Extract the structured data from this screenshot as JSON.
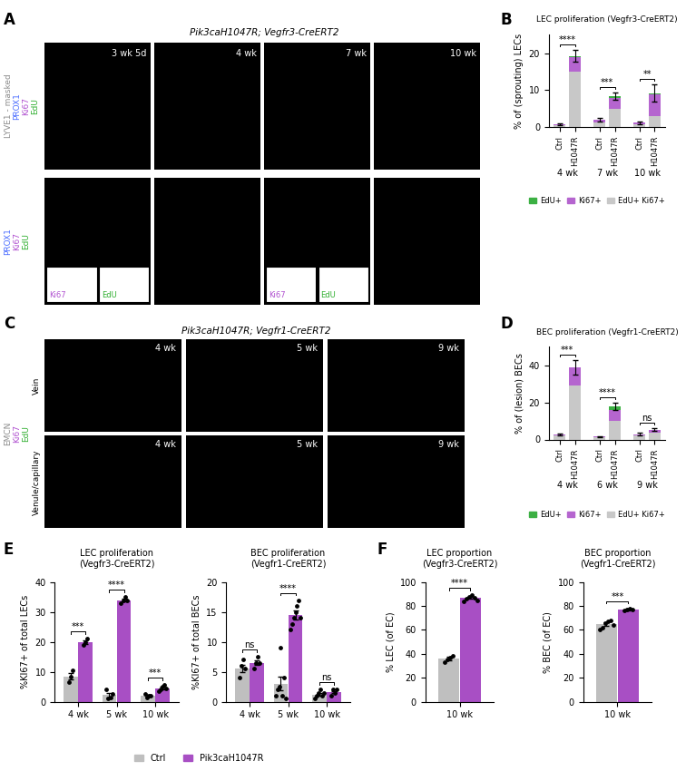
{
  "images": [
    {
      "letter": "A",
      "title": "Pik3caH1047R; Vegfr3-CreERT2",
      "columns": 4,
      "rows": [
        {
          "labels": [
            "3 wk 5d",
            "4 wk",
            "7 wk",
            "10 wk"
          ],
          "channels": [
            {
              "text": "LYVE1 - masked",
              "color": "#8c8c8c"
            },
            {
              "text": "PROX1",
              "color": "#4a6cff"
            },
            {
              "text": "Ki67",
              "color": "#b050d0"
            },
            {
              "text": "EdU",
              "color": "#2fae2f"
            }
          ]
        },
        {
          "channels": [
            {
              "text": "PROX1",
              "color": "#4a6cff"
            },
            {
              "text": "Ki67",
              "color": "#b050d0"
            },
            {
              "text": "EdU",
              "color": "#2fae2f"
            }
          ],
          "insets": {
            "tiles": [
              0,
              2
            ],
            "labels": [
              "Ki67",
              "EdU"
            ]
          }
        }
      ]
    },
    {
      "letter": "C",
      "title": "Pik3caH1047R; Vegfr1-CreERT2",
      "columns": 3,
      "channels": [
        {
          "text": "EMCN",
          "color": "#8c8c8c"
        },
        {
          "text": "Ki67",
          "color": "#b050d0"
        },
        {
          "text": "EdU",
          "color": "#2fae2f"
        }
      ],
      "rows": [
        {
          "name": "Vein",
          "labels": [
            "4 wk",
            "5 wk",
            "9 wk"
          ]
        },
        {
          "name": "Venule/capillary",
          "labels": [
            "4 wk",
            "5 wk",
            "9 wk"
          ]
        }
      ]
    }
  ],
  "chart_data": [
    {
      "letter": "B",
      "type": "bar",
      "stacked": true,
      "title": "LEC proliferation (Vegfr3-CreERT2)",
      "y_label": "% of (sprouting) LECs",
      "categories": [
        "Ctrl",
        "H1047R",
        "Ctrl",
        "H1047R",
        "Ctrl",
        "H1047R"
      ],
      "groups": [
        "4 wk",
        "7 wk",
        "10 wk"
      ],
      "ylim": [
        0,
        25
      ],
      "yticks": [
        0,
        10,
        20
      ],
      "series": [
        {
          "name": "EdU+ Ki67+",
          "color": "#c8c8c8",
          "values": [
            0.5,
            15,
            1.2,
            5,
            0.8,
            3
          ]
        },
        {
          "name": "Ki67+",
          "color": "#b565cf",
          "values": [
            0.3,
            4,
            0.8,
            3,
            0.4,
            6
          ]
        },
        {
          "name": "EdU+",
          "color": "#3cb043",
          "values": [
            0,
            0.3,
            0,
            0.3,
            0,
            0.2
          ]
        }
      ],
      "errors": [
        0.3,
        1.5,
        0.5,
        1,
        0.4,
        2.3
      ],
      "significance": [
        {
          "pair": [
            0,
            1
          ],
          "label": "****"
        },
        {
          "pair": [
            2,
            3
          ],
          "label": "***"
        },
        {
          "pair": [
            4,
            5
          ],
          "label": "**"
        }
      ],
      "legend": "lower center"
    },
    {
      "letter": "D",
      "type": "bar",
      "stacked": true,
      "title": "BEC proliferation (Vegfr1-CreERT2)",
      "y_label": "% of (lesion) BECs",
      "categories": [
        "Ctrl",
        "H1047R",
        "Ctrl",
        "H1047R",
        "Ctrl",
        "H1047R"
      ],
      "groups": [
        "4 wk",
        "6 wk",
        "9 wk"
      ],
      "ylim": [
        0,
        50
      ],
      "yticks": [
        0,
        20,
        40
      ],
      "series": [
        {
          "name": "EdU+ Ki67+",
          "color": "#c8c8c8",
          "values": [
            2,
            29,
            1,
            10,
            2,
            3.5
          ]
        },
        {
          "name": "Ki67+",
          "color": "#b565cf",
          "values": [
            0.8,
            10,
            0.5,
            6,
            0.8,
            1.5
          ]
        },
        {
          "name": "EdU+",
          "color": "#3cb043",
          "values": [
            0,
            0,
            0,
            2,
            0,
            0.3
          ]
        }
      ],
      "errors": [
        0.5,
        4,
        0.3,
        2,
        0.8,
        0.8
      ],
      "significance": [
        {
          "pair": [
            0,
            1
          ],
          "label": "***"
        },
        {
          "pair": [
            2,
            3
          ],
          "label": "****"
        },
        {
          "pair": [
            4,
            5
          ],
          "label": "ns"
        }
      ],
      "legend": "lower center"
    },
    {
      "letter": "E",
      "type": "bar",
      "title": "LEC proliferation\n(Vegfr3-CreERT2)",
      "y_label": "%KI67+ of total LECs",
      "categories": [
        "4 wk",
        "5 wk",
        "10 wk"
      ],
      "ylim": [
        0,
        40
      ],
      "yticks": [
        0,
        10,
        20,
        30,
        40
      ],
      "series": [
        {
          "name": "Ctrl",
          "color": "#bfbfbf",
          "values": [
            8.5,
            2.2,
            2
          ],
          "errors": [
            1.2,
            0.8,
            0.3
          ],
          "points": [
            [
              6.5,
              8.5,
              10.5
            ],
            [
              4,
              1,
              1.5,
              2.5
            ],
            [
              2.5,
              1.5,
              2,
              2
            ]
          ]
        },
        {
          "name": "Pik3caH1047R",
          "color": "#a84fc4",
          "values": [
            20,
            34,
            4.5
          ],
          "errors": [
            0.6,
            0.5,
            0.4
          ],
          "points": [
            [
              19,
              20,
              21
            ],
            [
              33,
              34,
              35,
              34
            ],
            [
              3.5,
              4,
              5,
              5.5,
              4.5
            ]
          ]
        }
      ],
      "significance": [
        "***",
        "****",
        "***"
      ],
      "legend": "lower center"
    },
    {
      "type": "bar",
      "title": "BEC proliferation\n(Vegfr1-CreERT2)",
      "y_label": "%KI67+ of total BECs",
      "categories": [
        "4 wk",
        "5 wk",
        "10 wk"
      ],
      "ylim": [
        0,
        20
      ],
      "yticks": [
        0,
        5,
        10,
        15,
        20
      ],
      "series": [
        {
          "name": "Ctrl",
          "color": "#bfbfbf",
          "values": [
            5.5,
            3,
            1.2
          ],
          "errors": [
            0.6,
            1.1,
            0.2
          ],
          "points": [
            [
              4,
              6,
              7,
              5.5
            ],
            [
              1,
              2,
              2.5,
              9,
              1,
              4,
              0.5
            ],
            [
              0.5,
              1,
              1.5,
              2,
              1,
              1.5
            ]
          ]
        },
        {
          "name": "Pik3caH1047R",
          "color": "#a84fc4",
          "values": [
            6.5,
            14.5,
            1.6
          ],
          "errors": [
            0.4,
            0.7,
            0.2
          ],
          "points": [
            [
              5.5,
              6.5,
              7.5,
              6.5
            ],
            [
              12,
              13,
              14,
              15,
              16,
              17,
              14
            ],
            [
              1,
              2,
              1.5,
              2
            ]
          ]
        }
      ],
      "significance": [
        "ns",
        "****",
        "ns"
      ]
    },
    {
      "letter": "F",
      "type": "bar",
      "title": "LEC proportion\n(Vegfr3-CreERT2)",
      "y_label": "% LEC (of EC)",
      "categories": [
        "10 wk"
      ],
      "ylim": [
        0,
        100
      ],
      "yticks": [
        0,
        20,
        40,
        60,
        80,
        100
      ],
      "series": [
        {
          "name": "Ctrl",
          "color": "#bfbfbf",
          "values": [
            36
          ],
          "errors": [
            1.2
          ],
          "points": [
            [
              33,
              35,
              37,
              38
            ]
          ]
        },
        {
          "name": "Pik3caH1047R",
          "color": "#a84fc4",
          "values": [
            87
          ],
          "errors": [
            0.8
          ],
          "points": [
            [
              84,
              86,
              88,
              89,
              87,
              85
            ]
          ]
        }
      ],
      "significance": [
        "****"
      ]
    },
    {
      "type": "bar",
      "title": "BEC proportion\n(Vegfr1-CreERT2)",
      "y_label": "% BEC (of EC)",
      "categories": [
        "10 wk"
      ],
      "ylim": [
        0,
        100
      ],
      "yticks": [
        0,
        20,
        40,
        60,
        80,
        100
      ],
      "series": [
        {
          "name": "Ctrl",
          "color": "#bfbfbf",
          "values": [
            65
          ],
          "errors": [
            1.3
          ],
          "points": [
            [
              60,
              62,
              66,
              67,
              68,
              64
            ]
          ]
        },
        {
          "name": "Pik3caH1047R",
          "color": "#a84fc4",
          "values": [
            77
          ],
          "errors": [
            0.5
          ],
          "points": [
            [
              76,
              77,
              78,
              77
            ]
          ]
        }
      ],
      "significance": [
        "***"
      ]
    }
  ]
}
